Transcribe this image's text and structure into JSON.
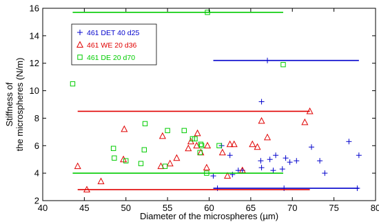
{
  "chart_data": {
    "type": "scatter",
    "xlabel": "Diameter of the microspheres (µm)",
    "ylabel": "Stiffness of the microspheres (N/m)",
    "xlim": [
      40,
      80
    ],
    "ylim": [
      2,
      16
    ],
    "xticks": [
      "40",
      "45",
      "50",
      "55",
      "60",
      "65",
      "70",
      "75",
      "80"
    ],
    "yticks": [
      "2",
      "4",
      "6",
      "8",
      "10",
      "12",
      "14",
      "16"
    ],
    "grid": false,
    "legend_position": "top-left",
    "series": [
      {
        "name": "461 DET 40 d25",
        "marker": "plus",
        "color": "#0000cc",
        "points": [
          [
            60.5,
            3.8
          ],
          [
            61.0,
            2.9
          ],
          [
            61.5,
            6.0
          ],
          [
            62.5,
            5.3
          ],
          [
            62.8,
            3.9
          ],
          [
            63.5,
            4.2
          ],
          [
            64.0,
            4.2
          ],
          [
            66.2,
            4.9
          ],
          [
            66.3,
            4.4
          ],
          [
            66.3,
            9.2
          ],
          [
            67.0,
            12.2
          ],
          [
            67.3,
            5.0
          ],
          [
            67.7,
            4.2
          ],
          [
            68.0,
            5.3
          ],
          [
            68.8,
            4.3
          ],
          [
            69.0,
            2.9
          ],
          [
            69.2,
            5.1
          ],
          [
            69.7,
            4.8
          ],
          [
            70.5,
            4.9
          ],
          [
            72.3,
            5.9
          ],
          [
            73.3,
            4.9
          ],
          [
            73.9,
            4.0
          ],
          [
            76.8,
            6.3
          ],
          [
            77.8,
            2.9
          ],
          [
            78.0,
            5.3
          ]
        ],
        "hlines": [
          {
            "y": 12.2,
            "xmin": 60.5,
            "xmax": 78.0
          },
          {
            "y": 2.9,
            "xmin": 60.5,
            "xmax": 78.0
          }
        ]
      },
      {
        "name": "461 WE 20 d36",
        "marker": "triangle",
        "color": "#e00000",
        "points": [
          [
            44.2,
            4.5
          ],
          [
            45.3,
            2.8
          ],
          [
            47.0,
            3.4
          ],
          [
            49.7,
            5.0
          ],
          [
            49.8,
            7.2
          ],
          [
            54.2,
            4.5
          ],
          [
            54.4,
            6.7
          ],
          [
            55.3,
            4.7
          ],
          [
            56.1,
            5.1
          ],
          [
            57.5,
            5.8
          ],
          [
            57.8,
            6.3
          ],
          [
            58.5,
            6.0
          ],
          [
            58.6,
            6.9
          ],
          [
            59.0,
            5.5
          ],
          [
            59.7,
            4.4
          ],
          [
            59.8,
            6.0
          ],
          [
            61.6,
            5.5
          ],
          [
            62.2,
            3.8
          ],
          [
            62.5,
            6.1
          ],
          [
            63.0,
            6.1
          ],
          [
            64.0,
            4.2
          ],
          [
            65.2,
            6.1
          ],
          [
            65.8,
            5.9
          ],
          [
            66.3,
            7.8
          ],
          [
            67.0,
            6.6
          ],
          [
            71.5,
            7.7
          ],
          [
            72.1,
            8.5
          ]
        ],
        "hlines": [
          {
            "y": 8.5,
            "xmin": 44.2,
            "xmax": 72.1
          },
          {
            "y": 2.8,
            "xmin": 44.2,
            "xmax": 72.1
          }
        ]
      },
      {
        "name": "461 DE 20 d70",
        "marker": "square",
        "color": "#00cc00",
        "points": [
          [
            43.6,
            10.5
          ],
          [
            48.5,
            5.8
          ],
          [
            48.6,
            5.1
          ],
          [
            50.0,
            4.9
          ],
          [
            51.8,
            4.7
          ],
          [
            52.2,
            5.7
          ],
          [
            52.3,
            7.6
          ],
          [
            54.7,
            4.5
          ],
          [
            55.0,
            7.1
          ],
          [
            57.0,
            7.1
          ],
          [
            58.0,
            6.5
          ],
          [
            58.3,
            6.5
          ],
          [
            58.9,
            5.5
          ],
          [
            59.0,
            6.1
          ],
          [
            59.1,
            6.0
          ],
          [
            59.7,
            4.0
          ],
          [
            59.8,
            15.7
          ],
          [
            61.2,
            6.0
          ],
          [
            68.9,
            11.9
          ]
        ],
        "hlines": [
          {
            "y": 15.7,
            "xmin": 43.6,
            "xmax": 68.9
          },
          {
            "y": 4.0,
            "xmin": 43.6,
            "xmax": 68.9
          }
        ]
      }
    ]
  }
}
